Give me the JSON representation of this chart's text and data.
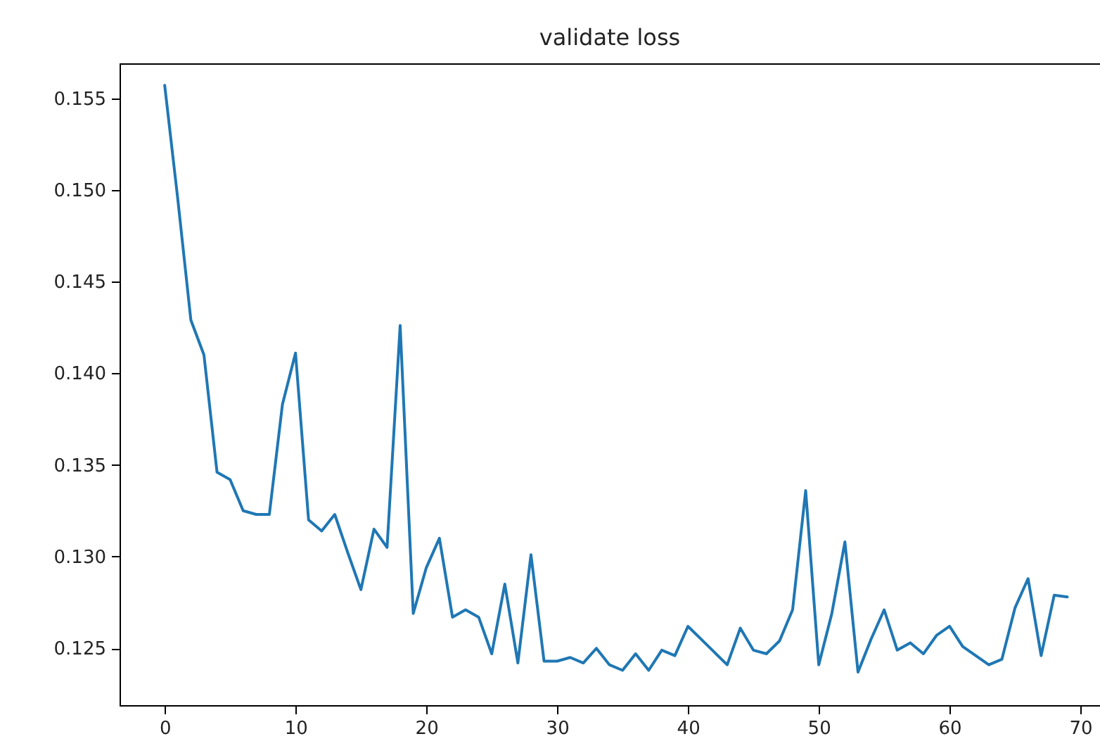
{
  "chart_data": {
    "type": "line",
    "title": "validate loss",
    "x": [
      0,
      1,
      2,
      3,
      4,
      5,
      6,
      7,
      8,
      9,
      10,
      11,
      12,
      13,
      14,
      15,
      16,
      17,
      18,
      19,
      20,
      21,
      22,
      23,
      24,
      25,
      26,
      27,
      28,
      29,
      30,
      31,
      32,
      33,
      34,
      35,
      36,
      37,
      38,
      39,
      40,
      41,
      42,
      43,
      44,
      45,
      46,
      47,
      48,
      49,
      50,
      51,
      52,
      53,
      54,
      55,
      56,
      57,
      58,
      59,
      60,
      61,
      62,
      63,
      64,
      65,
      66,
      67,
      68,
      69
    ],
    "series": [
      {
        "color": "#1f77b4",
        "values": [
          0.1557,
          0.1495,
          0.1429,
          0.141,
          0.1346,
          0.1342,
          0.1325,
          0.1323,
          0.1323,
          0.1383,
          0.1411,
          0.132,
          0.1314,
          0.1323,
          0.1302,
          0.1282,
          0.1315,
          0.1305,
          0.1426,
          0.1269,
          0.1294,
          0.131,
          0.1267,
          0.1271,
          0.1267,
          0.1247,
          0.1285,
          0.1242,
          0.1301,
          0.1243,
          0.1243,
          0.1245,
          0.1242,
          0.125,
          0.1241,
          0.1238,
          0.1247,
          0.1238,
          0.1249,
          0.1246,
          0.1262,
          0.1255,
          0.1248,
          0.1241,
          0.1261,
          0.1249,
          0.1247,
          0.1254,
          0.1271,
          0.1336,
          0.1241,
          0.1269,
          0.1308,
          0.1237,
          0.1255,
          0.1271,
          0.1249,
          0.1253,
          0.1247,
          0.1257,
          0.1262,
          0.1251,
          0.1246,
          0.1241,
          0.1244,
          0.1272,
          0.1288,
          0.1246,
          0.1279,
          0.1278
        ]
      }
    ],
    "xlim": [
      -3.45,
      71.5
    ],
    "xticks": [
      0,
      10,
      20,
      30,
      40,
      50,
      60,
      70
    ],
    "ylim": [
      0.1219,
      0.1569
    ],
    "yticks": [
      0.125,
      {
        "value": 0.13,
        "label": "0.130"
      },
      0.135,
      {
        "value": 0.14,
        "label": "0.140"
      },
      0.145,
      {
        "value": 0.15,
        "label": "0.150"
      },
      0.155
    ],
    "grid": false,
    "legend": false,
    "marker": "none",
    "line_style": "solid"
  }
}
